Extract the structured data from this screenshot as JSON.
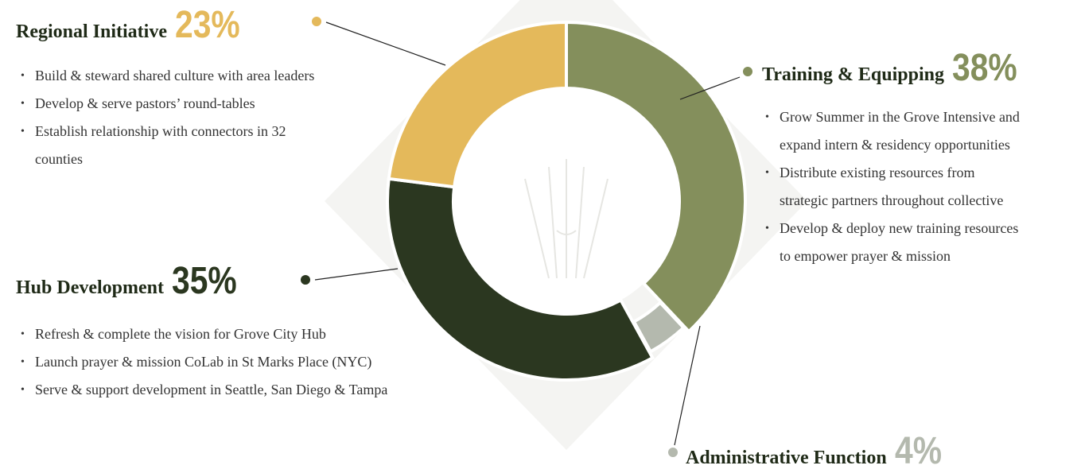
{
  "chart_data": {
    "type": "pie",
    "donut": true,
    "categories": [
      "Training & Equipping",
      "Administrative Function",
      "Hub Development",
      "Regional Initiative"
    ],
    "values": [
      38,
      4,
      35,
      23
    ],
    "value_labels": [
      "38%",
      "4%",
      "35%",
      "23%"
    ],
    "colors": [
      "#848f5c",
      "#b4b9ae",
      "#2b3720",
      "#e4b95b"
    ],
    "exploded": [
      false,
      true,
      false,
      false
    ],
    "notes": [
      [
        "Grow Summer in the Grove Intensive and expand intern & residency opportunities",
        "Distribute existing resources from strategic partners throughout collective",
        "Develop & deploy new training resources to empower prayer & mission"
      ],
      [],
      [
        "Refresh & complete the vision for Grove City Hub",
        "Launch prayer & mission CoLab in St Marks Place (NYC)",
        "Serve & support development in Seattle, San Diego & Tampa"
      ],
      [
        "Build & steward shared culture with area leaders",
        "Develop & serve pastors’ round-tables",
        "Establish relationship with connectors in 32 counties"
      ]
    ]
  }
}
